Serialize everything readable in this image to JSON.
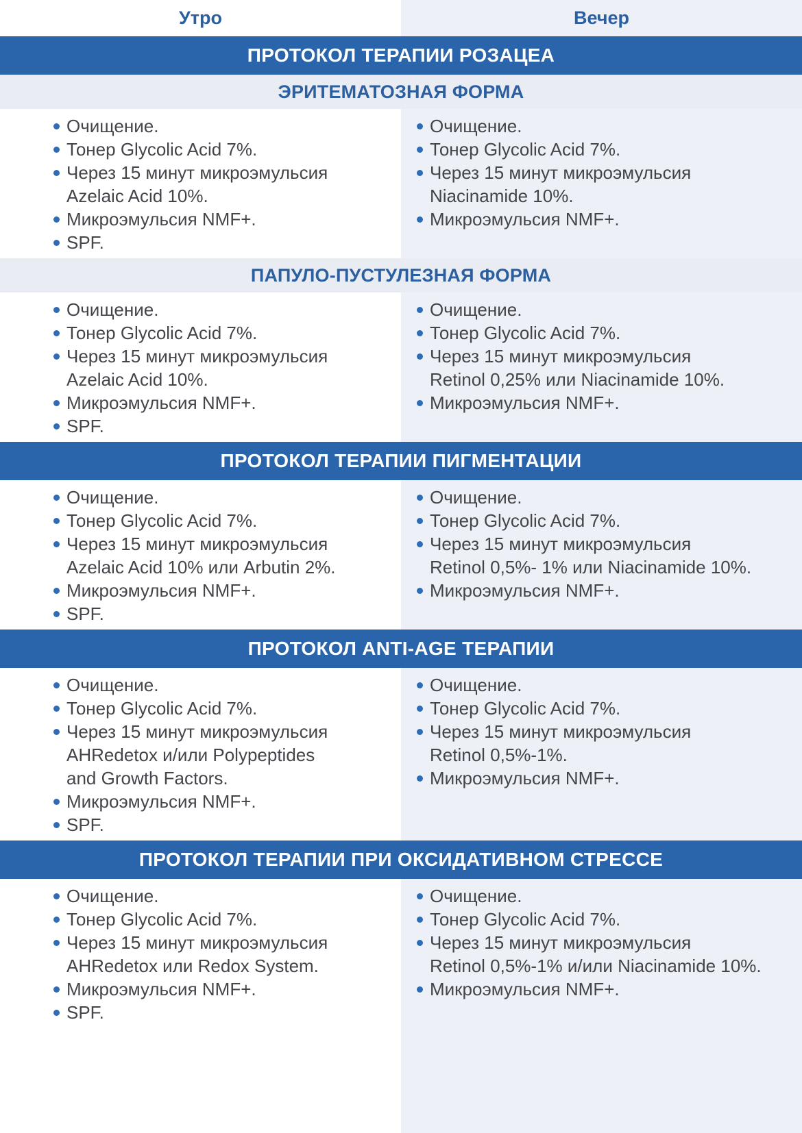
{
  "header": {
    "morning_label": "Утро",
    "evening_label": "Вечер"
  },
  "colors": {
    "banner_bg": "#2a64aa",
    "banner_text": "#ffffff",
    "subband_bg": "#e9ecf2",
    "heading_blue": "#2b5f9f",
    "bullet_blue": "#2e6cb5",
    "body_text": "#43454a",
    "evening_column_bg": "#eef0f8",
    "morning_column_bg": "#ffffff"
  },
  "sections": [
    {
      "banner": "ПРОТОКОЛ ТЕРАПИИ РОЗАЦЕА",
      "blocks": [
        {
          "subtitle": "ЭРИТЕМАТОЗНАЯ ФОРМА",
          "morning": [
            "Очищение.",
            "Тонер Glycolic Acid 7%.",
            "Через 15 минут микроэмульсия\nAzelaic Acid 10%.",
            "Микроэмульсия NMF+.",
            "SPF."
          ],
          "evening": [
            "Очищение.",
            "Тонер Glycolic Acid 7%.",
            "Через 15 минут микроэмульсия\nNiacinamide 10%.",
            "Микроэмульсия NMF+."
          ]
        },
        {
          "subtitle": "ПАПУЛО-ПУСТУЛЕЗНАЯ ФОРМА",
          "morning": [
            "Очищение.",
            "Тонер Glycolic Acid 7%.",
            "Через 15 минут микроэмульсия\nAzelaic Acid 10%.",
            "Микроэмульсия NMF+.",
            "SPF."
          ],
          "evening": [
            "Очищение.",
            "Тонер Glycolic Acid 7%.",
            "Через 15 минут микроэмульсия\nRetinol 0,25% или Niacinamide 10%.",
            "Микроэмульсия NMF+."
          ]
        }
      ]
    },
    {
      "banner": "ПРОТОКОЛ ТЕРАПИИ ПИГМЕНТАЦИИ",
      "blocks": [
        {
          "subtitle": null,
          "morning": [
            "Очищение.",
            "Тонер Glycolic Acid 7%.",
            "Через 15 минут микроэмульсия\nAzelaic Acid 10% или Arbutin 2%.",
            "Микроэмульсия NMF+.",
            "SPF."
          ],
          "evening": [
            "Очищение.",
            "Тонер Glycolic Acid 7%.",
            "Через 15 минут микроэмульсия\nRetinol 0,5%- 1% или Niacinamide 10%.",
            "Микроэмульсия NMF+."
          ]
        }
      ]
    },
    {
      "banner": "ПРОТОКОЛ ANTI-AGE ТЕРАПИИ",
      "blocks": [
        {
          "subtitle": null,
          "morning": [
            "Очищение.",
            "Тонер Glycolic Acid 7%.",
            "Через 15 минут микроэмульсия\nAHRedetox и/или Polypeptides\nand Growth Factors.",
            "Микроэмульсия NMF+.",
            "SPF."
          ],
          "evening": [
            "Очищение.",
            "Тонер Glycolic Acid 7%.",
            "Через 15 минут микроэмульсия\nRetinol 0,5%-1%.",
            "Микроэмульсия NMF+."
          ]
        }
      ]
    },
    {
      "banner": "ПРОТОКОЛ ТЕРАПИИ ПРИ ОКСИДАТИВНОМ СТРЕССЕ",
      "blocks": [
        {
          "subtitle": null,
          "morning": [
            "Очищение.",
            "Тонер Glycolic Acid 7%.",
            "Через 15 минут микроэмульсия\nAHRedetox или Redox System.",
            "Микроэмульсия NMF+.",
            "SPF."
          ],
          "evening": [
            "Очищение.",
            "Тонер Glycolic Acid 7%.",
            "Через 15 минут микроэмульсия\nRetinol 0,5%-1% и/или Niacinamide 10%.",
            "Микроэмульсия NMF+."
          ]
        }
      ]
    }
  ]
}
